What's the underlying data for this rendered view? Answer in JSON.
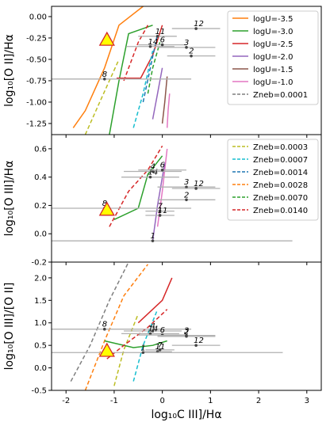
{
  "chart_data": [
    {
      "type": "line",
      "panel": "top",
      "ylabel": "log₁₀[O II]/Hα",
      "xlim": [
        -2.3,
        3.3
      ],
      "ylim": [
        -1.38,
        0.12
      ],
      "yticks": [
        "0.00",
        "-0.25",
        "-0.50",
        "-0.75",
        "-1.00",
        "-1.25"
      ],
      "ytick_values": [
        0.0,
        -0.25,
        -0.5,
        -0.75,
        -1.0,
        -1.25
      ],
      "legend": {
        "entries": [
          {
            "label": "logU=-3.5",
            "color": "#ff7f0e",
            "dash": false
          },
          {
            "label": "logU=-3.0",
            "color": "#2ca02c",
            "dash": false
          },
          {
            "label": "logU=-2.5",
            "color": "#d62728",
            "dash": false
          },
          {
            "label": "logU=-2.0",
            "color": "#9467bd",
            "dash": false
          },
          {
            "label": "logU=-1.5",
            "color": "#8c564b",
            "dash": false
          },
          {
            "label": "logU=-1.0",
            "color": "#e377c2",
            "dash": false
          },
          {
            "label": "Zneb=0.0001",
            "color": "#7f7f7f",
            "dash": true
          }
        ]
      },
      "grid_lines": [
        {
          "color": "#ff7f0e",
          "dash": false,
          "points": [
            [
              -1.85,
              -1.3
            ],
            [
              -1.6,
              -1.1
            ],
            [
              -1.2,
              -0.6
            ],
            [
              -0.9,
              -0.1
            ],
            [
              -0.4,
              0.12
            ]
          ]
        },
        {
          "color": "#2ca02c",
          "dash": false,
          "points": [
            [
              -1.1,
              -1.38
            ],
            [
              -0.9,
              -0.75
            ],
            [
              -0.7,
              -0.2
            ],
            [
              -0.2,
              -0.1
            ]
          ]
        },
        {
          "color": "#d62728",
          "dash": false,
          "points": [
            [
              -0.95,
              -0.72
            ],
            [
              -0.45,
              -0.72
            ],
            [
              -0.2,
              -0.45
            ],
            [
              0.0,
              -0.1
            ]
          ]
        },
        {
          "color": "#9467bd",
          "dash": false,
          "points": [
            [
              -0.2,
              -1.2
            ],
            [
              -0.1,
              -0.9
            ],
            [
              0.0,
              -0.6
            ]
          ]
        },
        {
          "color": "#8c564b",
          "dash": false,
          "points": [
            [
              0.0,
              -1.25
            ],
            [
              0.05,
              -1.0
            ],
            [
              0.1,
              -0.7
            ]
          ]
        },
        {
          "color": "#e377c2",
          "dash": false,
          "points": [
            [
              0.1,
              -1.3
            ],
            [
              0.12,
              -1.1
            ],
            [
              0.15,
              -0.9
            ]
          ]
        },
        {
          "color": "#bcbd22",
          "dash": true,
          "points": [
            [
              -1.6,
              -1.38
            ],
            [
              -1.3,
              -1.0
            ],
            [
              -0.9,
              -0.5
            ]
          ]
        },
        {
          "color": "#17becf",
          "dash": true,
          "points": [
            [
              -0.6,
              -1.3
            ],
            [
              -0.4,
              -0.9
            ],
            [
              -0.2,
              -0.4
            ]
          ]
        },
        {
          "color": "#1f77b4",
          "dash": true,
          "points": [
            [
              -0.4,
              -1.0
            ],
            [
              -0.25,
              -0.6
            ],
            [
              -0.1,
              -0.2
            ]
          ]
        },
        {
          "color": "#d62728",
          "dash": true,
          "points": [
            [
              -0.8,
              -0.75
            ],
            [
              -0.5,
              -0.3
            ],
            [
              -0.3,
              -0.1
            ]
          ]
        },
        {
          "color": "#2ca02c",
          "dash": true,
          "points": [
            [
              -0.3,
              -0.9
            ],
            [
              -0.2,
              -0.6
            ],
            [
              -0.05,
              -0.3
            ]
          ]
        }
      ],
      "target": {
        "x": -1.15,
        "y": -0.27
      },
      "objects": [
        {
          "label": "8",
          "x": -1.2,
          "y": -0.73,
          "err": 1.8
        },
        {
          "label": "12",
          "x": 0.7,
          "y": -0.14,
          "err": 0.5
        },
        {
          "label": "11",
          "x": -0.1,
          "y": -0.23,
          "err": 0.4
        },
        {
          "label": "14",
          "x": -0.25,
          "y": -0.35,
          "err": 0.5
        },
        {
          "label": "6",
          "x": 0.0,
          "y": -0.33,
          "err": 0.5
        },
        {
          "label": "3",
          "x": 0.5,
          "y": -0.36,
          "err": 0.6
        },
        {
          "label": "2",
          "x": 0.6,
          "y": -0.46,
          "err": 0.5
        }
      ]
    },
    {
      "type": "line",
      "panel": "middle",
      "ylabel": "log₁₀[O III]/Hα",
      "xlim": [
        -2.3,
        3.3
      ],
      "ylim": [
        -0.2,
        0.7
      ],
      "yticks": [
        "0.6",
        "0.4",
        "0.2",
        "0.0",
        "-0.2"
      ],
      "ytick_values": [
        0.6,
        0.4,
        0.2,
        0.0,
        -0.2
      ],
      "legend": {
        "entries": [
          {
            "label": "Zneb=0.0003",
            "color": "#bcbd22",
            "dash": true
          },
          {
            "label": "Zneb=0.0007",
            "color": "#17becf",
            "dash": true
          },
          {
            "label": "Zneb=0.0014",
            "color": "#1f77b4",
            "dash": true
          },
          {
            "label": "Zneb=0.0028",
            "color": "#ff7f0e",
            "dash": true
          },
          {
            "label": "Zneb=0.0070",
            "color": "#2ca02c",
            "dash": true
          },
          {
            "label": "Zneb=0.0140",
            "color": "#d62728",
            "dash": true
          }
        ]
      },
      "grid_lines": [
        {
          "color": "#d62728",
          "dash": true,
          "points": [
            [
              -1.1,
              0.05
            ],
            [
              -0.7,
              0.3
            ],
            [
              -0.3,
              0.45
            ],
            [
              0.0,
              0.62
            ]
          ]
        },
        {
          "color": "#2ca02c",
          "dash": false,
          "points": [
            [
              -1.0,
              0.1
            ],
            [
              -0.5,
              0.18
            ],
            [
              -0.3,
              0.42
            ],
            [
              0.0,
              0.55
            ]
          ]
        },
        {
          "color": "#e377c2",
          "dash": false,
          "points": [
            [
              -0.1,
              0.05
            ],
            [
              0.0,
              0.3
            ],
            [
              0.1,
              0.6
            ]
          ]
        },
        {
          "color": "#9467bd",
          "dash": false,
          "points": [
            [
              -0.2,
              -0.05
            ],
            [
              -0.1,
              0.2
            ],
            [
              0.05,
              0.5
            ]
          ]
        }
      ],
      "target": {
        "x": -1.15,
        "y": 0.17
      },
      "objects": [
        {
          "label": "4",
          "x": -0.2,
          "y": 0.44,
          "err": 0.6
        },
        {
          "label": "14",
          "x": -0.25,
          "y": 0.4,
          "err": 0.6
        },
        {
          "label": "6",
          "x": 0.0,
          "y": 0.45,
          "err": 0.5
        },
        {
          "label": "3",
          "x": 0.5,
          "y": 0.33,
          "err": 0.6
        },
        {
          "label": "12",
          "x": 0.7,
          "y": 0.32,
          "err": 0.5
        },
        {
          "label": "2",
          "x": 0.5,
          "y": 0.24,
          "err": 0.6
        },
        {
          "label": "8",
          "x": -1.2,
          "y": 0.18,
          "err": 1.8
        },
        {
          "label": "7",
          "x": -0.05,
          "y": 0.16,
          "err": 0.3
        },
        {
          "label": "11",
          "x": -0.05,
          "y": 0.13,
          "err": 0.3
        },
        {
          "label": "1",
          "x": -0.2,
          "y": -0.05,
          "err": 2.9
        }
      ]
    },
    {
      "type": "line",
      "panel": "bottom",
      "ylabel": "log₁₀[O III]/[O II]",
      "xlabel": "log₁₀C III]/Hα",
      "xlim": [
        -2.3,
        3.3
      ],
      "xticks": [
        "-2",
        "-1",
        "0",
        "1",
        "2",
        "3"
      ],
      "xtick_values": [
        -2,
        -1,
        0,
        1,
        2,
        3
      ],
      "ylim": [
        -0.5,
        2.35
      ],
      "yticks": [
        "2.0",
        "1.5",
        "1.0",
        "0.5",
        "0.0",
        "-0.5"
      ],
      "ytick_values": [
        2.0,
        1.5,
        1.0,
        0.5,
        0.0,
        -0.5
      ],
      "grid_lines": [
        {
          "color": "#7f7f7f",
          "dash": true,
          "points": [
            [
              -1.9,
              -0.3
            ],
            [
              -1.5,
              0.5
            ],
            [
              -1.1,
              1.5
            ],
            [
              -0.7,
              2.35
            ]
          ]
        },
        {
          "color": "#ff7f0e",
          "dash": true,
          "points": [
            [
              -1.6,
              -0.5
            ],
            [
              -1.2,
              0.6
            ],
            [
              -0.8,
              1.6
            ],
            [
              -0.3,
              2.3
            ]
          ]
        },
        {
          "color": "#bcbd22",
          "dash": true,
          "points": [
            [
              -1.0,
              -0.4
            ],
            [
              -0.8,
              0.4
            ],
            [
              -0.5,
              1.2
            ]
          ]
        },
        {
          "color": "#17becf",
          "dash": true,
          "points": [
            [
              -0.6,
              -0.3
            ],
            [
              -0.4,
              0.5
            ],
            [
              -0.1,
              1.3
            ]
          ]
        },
        {
          "color": "#2ca02c",
          "dash": false,
          "points": [
            [
              -1.2,
              0.6
            ],
            [
              -0.6,
              0.45
            ],
            [
              -0.2,
              0.5
            ],
            [
              0.1,
              0.6
            ]
          ]
        },
        {
          "color": "#d62728",
          "dash": true,
          "points": [
            [
              -1.15,
              0.2
            ],
            [
              -0.8,
              0.5
            ],
            [
              -0.3,
              0.9
            ],
            [
              0.1,
              1.3
            ]
          ]
        },
        {
          "color": "#d62728",
          "dash": false,
          "points": [
            [
              -0.5,
              1.0
            ],
            [
              0.0,
              1.5
            ],
            [
              0.2,
              2.0
            ]
          ]
        }
      ],
      "target": {
        "x": -1.15,
        "y": 0.38
      },
      "objects": [
        {
          "label": "8",
          "x": -1.2,
          "y": 0.86,
          "err": 1.8
        },
        {
          "label": "4",
          "x": -0.2,
          "y": 0.82,
          "err": 0.6
        },
        {
          "label": "14",
          "x": -0.25,
          "y": 0.76,
          "err": 0.6
        },
        {
          "label": "6",
          "x": 0.0,
          "y": 0.73,
          "err": 0.5
        },
        {
          "label": "3",
          "x": 0.5,
          "y": 0.72,
          "err": 0.6
        },
        {
          "label": "2",
          "x": 0.5,
          "y": 0.7,
          "err": 0.6
        },
        {
          "label": "12",
          "x": 0.7,
          "y": 0.5,
          "err": 0.5
        },
        {
          "label": "7",
          "x": -0.05,
          "y": 0.4,
          "err": 0.3
        },
        {
          "label": "11",
          "x": -0.1,
          "y": 0.36,
          "err": 0.3
        },
        {
          "label": "1",
          "x": -0.4,
          "y": 0.34,
          "err": 2.9
        }
      ]
    }
  ]
}
